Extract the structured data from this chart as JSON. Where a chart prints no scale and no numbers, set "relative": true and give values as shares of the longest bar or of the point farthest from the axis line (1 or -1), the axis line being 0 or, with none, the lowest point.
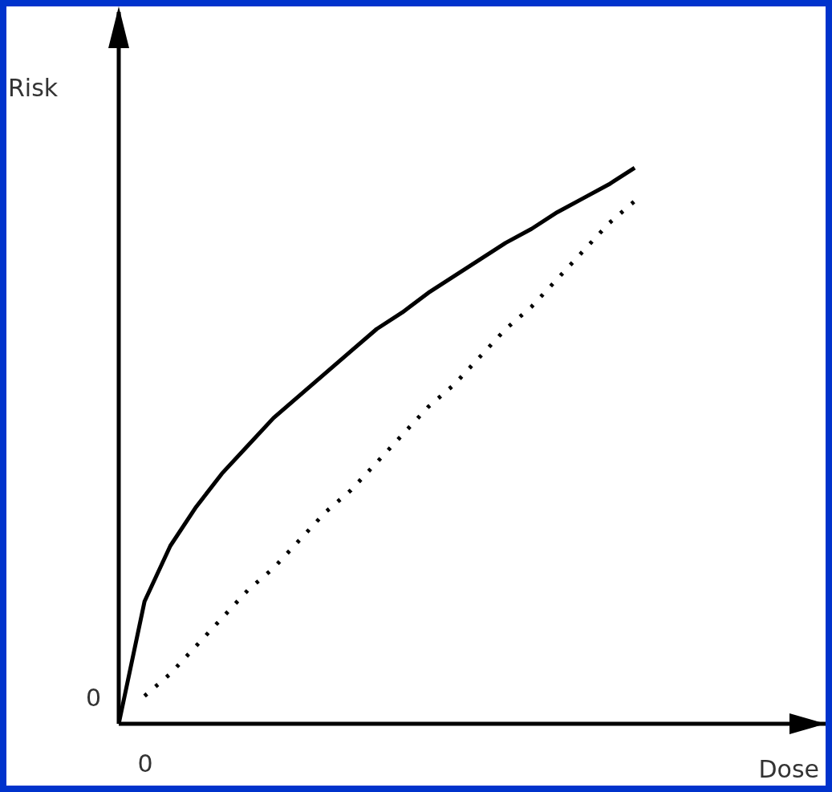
{
  "chart_data": {
    "type": "line",
    "relative": true,
    "xlabel": "Dose",
    "ylabel": "Risk",
    "annotations": [
      "0",
      "0"
    ],
    "marker": "none",
    "categories": [
      null,
      null,
      null,
      null,
      null,
      null,
      null,
      null,
      null,
      null,
      null,
      null,
      null,
      null,
      null,
      null,
      null,
      null,
      null,
      null,
      null
    ],
    "series": [
      {
        "color": "#000000",
        "line_style": "solid",
        "values": [
          0,
          0.22,
          0.32,
          0.39,
          0.45,
          0.5,
          0.55,
          0.59,
          0.63,
          0.67,
          0.71,
          0.74,
          0.775,
          0.805,
          0.835,
          0.865,
          0.89,
          0.92,
          0.945,
          0.97,
          1
        ]
      },
      {
        "color": "#000000",
        "line_style": "dotted",
        "values": [
          null,
          0.05,
          0.09,
          0.14,
          0.19,
          0.24,
          0.28,
          0.33,
          0.38,
          0.42,
          0.47,
          0.52,
          0.57,
          0.61,
          0.66,
          0.71,
          0.75,
          0.8,
          0.85,
          0.9,
          0.94
        ]
      }
    ]
  }
}
